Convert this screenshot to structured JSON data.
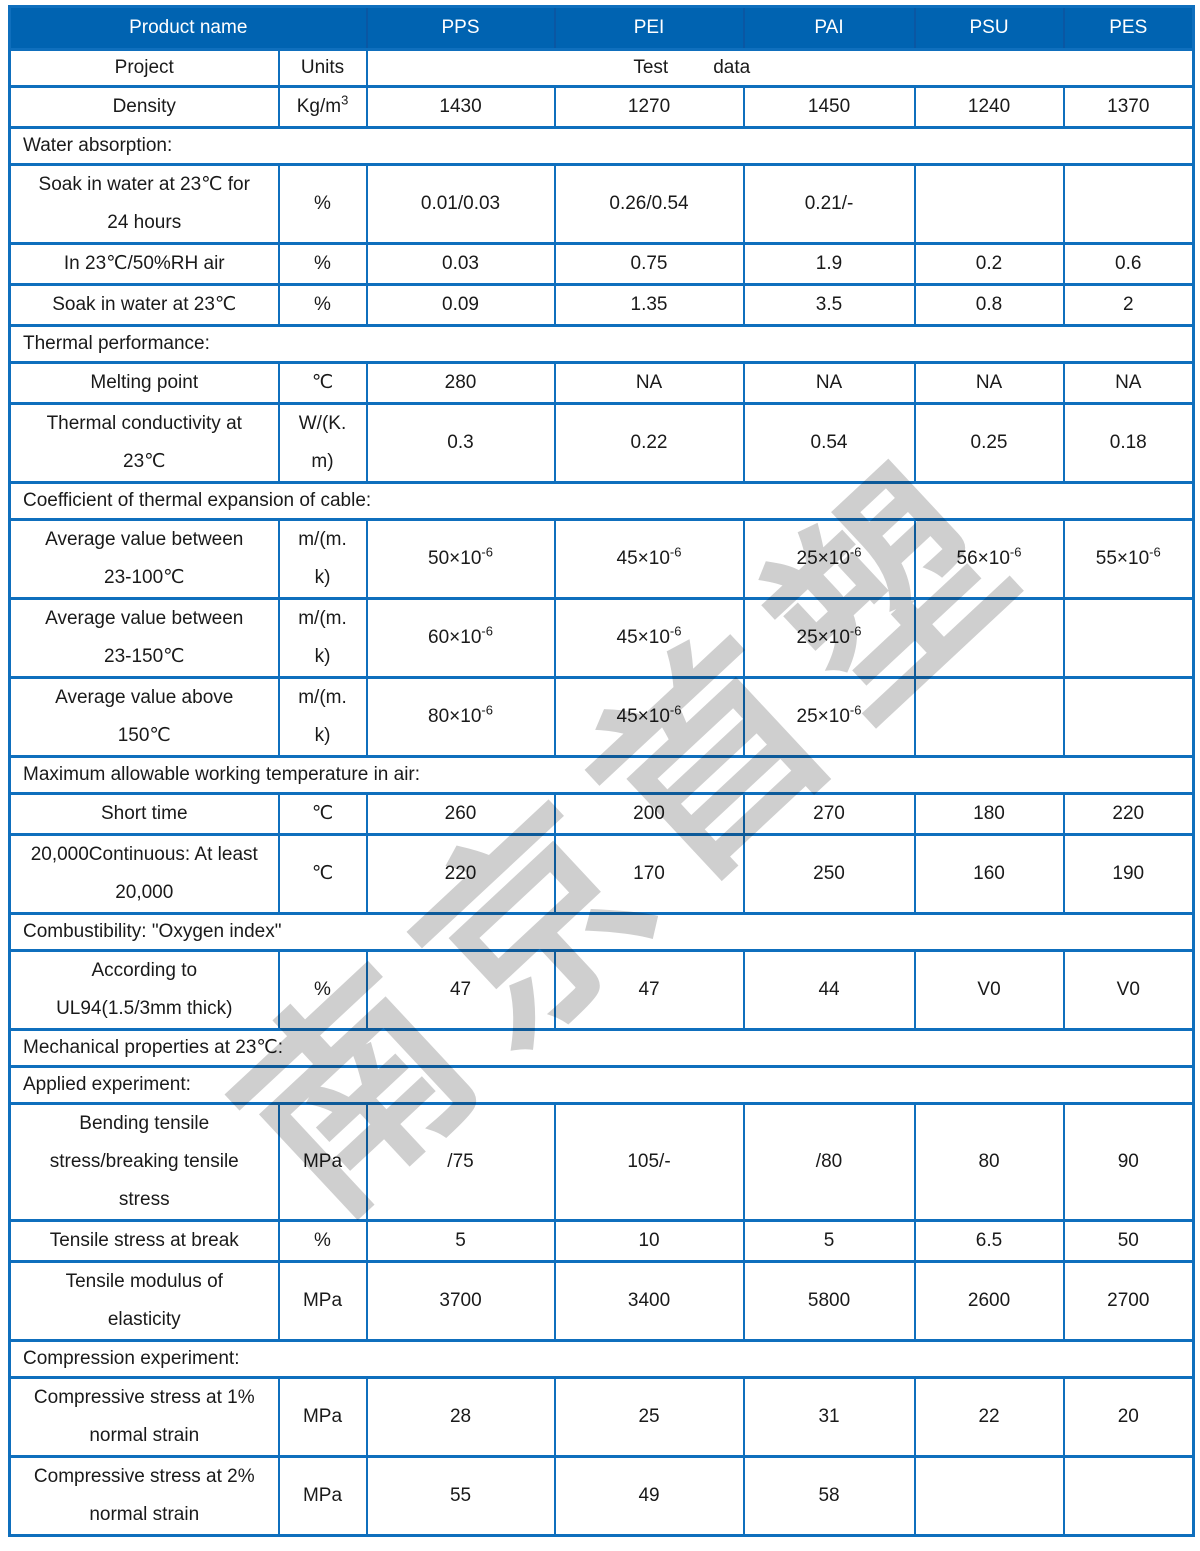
{
  "watermark_text": "南京首塑",
  "colors": {
    "header_bg": "#0063b1",
    "border": "#0f6fbd",
    "header_divider": "#0a57a3",
    "watermark": "#cfcfcf"
  },
  "header": {
    "product_name": "Product name",
    "products": [
      "PPS",
      "PEI",
      "PAI",
      "PSU",
      "PES"
    ]
  },
  "subheader": {
    "project": "Project",
    "units": "Units",
    "test": "Test",
    "data": "data"
  },
  "rows": [
    {
      "type": "data",
      "label": "Density",
      "unit": "Kg/m^3",
      "values": [
        "1430",
        "1270",
        "1450",
        "1240",
        "1370"
      ]
    },
    {
      "type": "section",
      "label": "Water absorption:"
    },
    {
      "type": "data",
      "label": "Soak in water at 23℃ for\n24 hours",
      "unit": "%",
      "values": [
        "0.01/0.03",
        "0.26/0.54",
        "0.21/-",
        "",
        ""
      ]
    },
    {
      "type": "data",
      "label": "In 23℃/50%RH air",
      "unit": "%",
      "values": [
        "0.03",
        "0.75",
        "1.9",
        "0.2",
        "0.6"
      ]
    },
    {
      "type": "data",
      "label": "Soak in water at 23℃",
      "unit": "%",
      "values": [
        "0.09",
        "1.35",
        "3.5",
        "0.8",
        "2"
      ]
    },
    {
      "type": "section",
      "label": "Thermal performance:"
    },
    {
      "type": "data",
      "label": "Melting point",
      "unit": "℃",
      "values": [
        "280",
        "NA",
        "NA",
        "NA",
        "NA"
      ]
    },
    {
      "type": "data",
      "label": "Thermal conductivity at\n23℃",
      "unit": "W/(K.\nm)",
      "values": [
        "0.3",
        "0.22",
        "0.54",
        "0.25",
        "0.18"
      ]
    },
    {
      "type": "section",
      "label": "Coefficient of thermal expansion of cable:"
    },
    {
      "type": "data",
      "label": "Average value between\n23-100℃",
      "unit": "m/(m.\nk)",
      "values": [
        "50×10^-6",
        "45×10^-6",
        "25×10^-6",
        "56×10^-6",
        "55×10^-6"
      ]
    },
    {
      "type": "data",
      "label": "Average value between\n23-150℃",
      "unit": "m/(m.\nk)",
      "values": [
        "60×10^-6",
        "45×10^-6",
        "25×10^-6",
        "",
        ""
      ]
    },
    {
      "type": "data",
      "label": "Average value above\n150℃",
      "unit": "m/(m.\nk)",
      "values": [
        "80×10^-6",
        "45×10^-6",
        "25×10^-6",
        "",
        ""
      ]
    },
    {
      "type": "section",
      "label": "Maximum allowable working temperature in air:"
    },
    {
      "type": "data",
      "label": "Short time",
      "unit": "℃",
      "values": [
        "260",
        "200",
        "270",
        "180",
        "220"
      ]
    },
    {
      "type": "data",
      "label": "20,000Continuous: At least\n20,000",
      "unit": "℃",
      "values": [
        "220",
        "170",
        "250",
        "160",
        "190"
      ]
    },
    {
      "type": "section",
      "label": "Combustibility: \"Oxygen index\""
    },
    {
      "type": "data",
      "label": "According to\nUL94(1.5/3mm thick)",
      "unit": "%",
      "values": [
        "47",
        "47",
        "44",
        "V0",
        "V0"
      ]
    },
    {
      "type": "section",
      "label": "Mechanical properties at 23℃:"
    },
    {
      "type": "section",
      "label": "Applied experiment:"
    },
    {
      "type": "data",
      "label": "Bending tensile\nstress/breaking tensile\nstress",
      "unit": "MPa",
      "values": [
        "/75",
        "105/-",
        "/80",
        "80",
        "90"
      ]
    },
    {
      "type": "data",
      "label": "Tensile stress at break",
      "unit": "%",
      "values": [
        "5",
        "10",
        "5",
        "6.5",
        "50"
      ]
    },
    {
      "type": "data",
      "label": "Tensile modulus of\nelasticity",
      "unit": "MPa",
      "values": [
        "3700",
        "3400",
        "5800",
        "2600",
        "2700"
      ]
    },
    {
      "type": "section",
      "label": "Compression experiment:"
    },
    {
      "type": "data",
      "label": "Compressive stress at 1%\nnormal strain",
      "unit": "MPa",
      "values": [
        "28",
        "25",
        "31",
        "22",
        "20"
      ]
    },
    {
      "type": "data",
      "label": "Compressive stress at 2%\nnormal strain",
      "unit": "MPa",
      "values": [
        "55",
        "49",
        "58",
        "",
        ""
      ]
    }
  ]
}
